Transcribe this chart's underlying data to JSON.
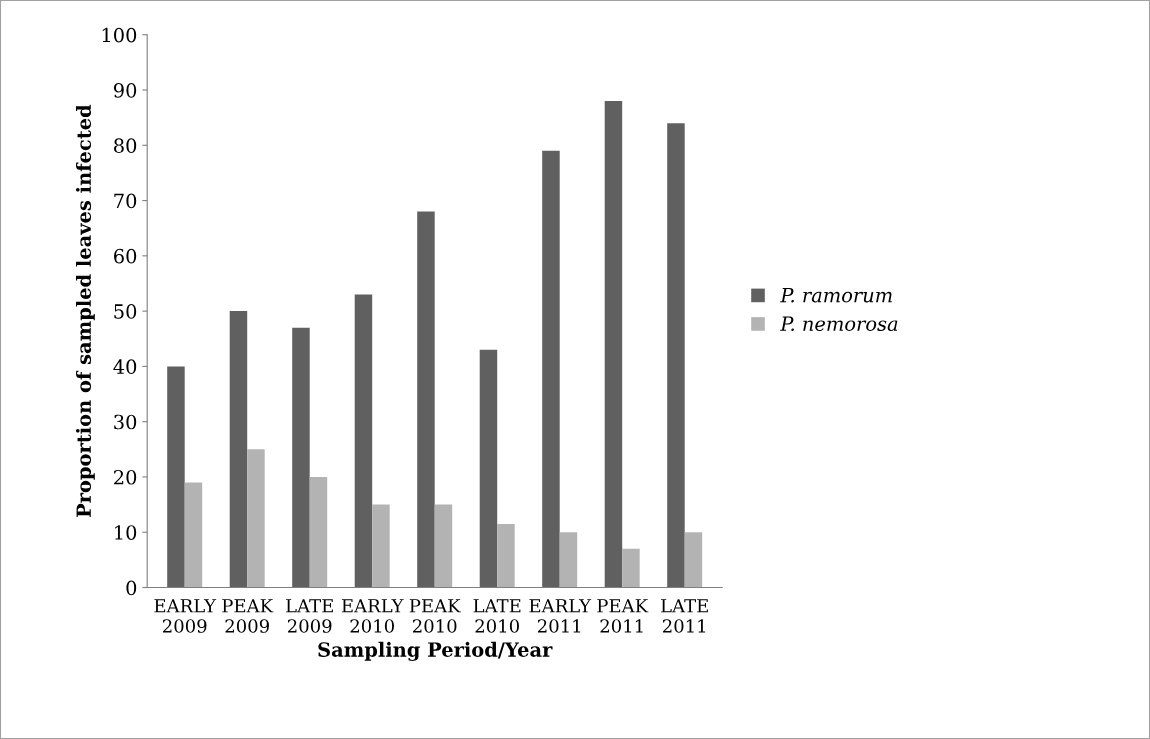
{
  "chart_data": {
    "type": "bar",
    "categories": [
      "EARLY\n2009",
      "PEAK\n2009",
      "LATE\n2009",
      "EARLY\n2010",
      "PEAK\n2010",
      "LATE\n2010",
      "EARLY\n2011",
      "PEAK\n2011",
      "LATE\n2011"
    ],
    "series": [
      {
        "name": "P. ramorum",
        "color": "#606060",
        "values": [
          40,
          50,
          47,
          53,
          68,
          43,
          79,
          88,
          84
        ]
      },
      {
        "name": "P. nemorosa",
        "color": "#b3b3b3",
        "values": [
          19,
          25,
          20,
          15,
          15,
          11.5,
          10,
          7,
          10
        ]
      }
    ],
    "xlabel": "Sampling Period/Year",
    "ylabel": "Proportion of sampled leaves infected",
    "ylim": [
      0,
      100
    ],
    "yticks": [
      0,
      10,
      20,
      30,
      40,
      50,
      60,
      70,
      80,
      90,
      100
    ],
    "grid": false,
    "legend": "right"
  }
}
